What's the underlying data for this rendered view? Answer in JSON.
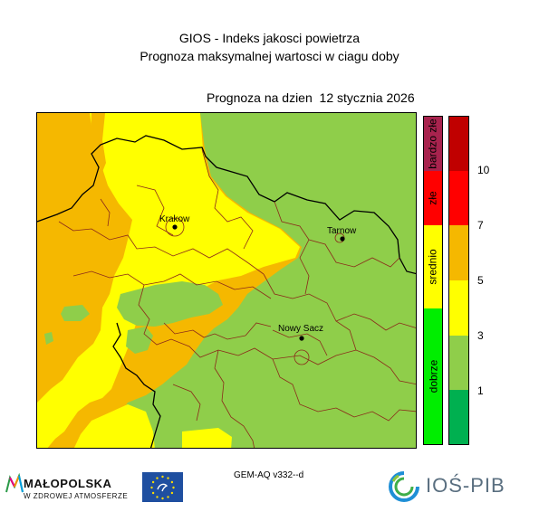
{
  "header": {
    "title_line1": "GIOS - Indeks jakosci powietrza",
    "title_line2": "Prognoza maksymalnej wartosci w ciagu doby",
    "date_line": "Prognoza na dzien  12 stycznia 2026"
  },
  "map": {
    "cities": [
      {
        "name": "Krakow"
      },
      {
        "name": "Tarnow"
      },
      {
        "name": "Nowy Sacz"
      }
    ],
    "fill_colors": {
      "orange": "#f5b800",
      "yellow": "#ffff00",
      "green": "#8fce4a"
    }
  },
  "legend": {
    "categories": [
      {
        "label": "bardzo złe",
        "color": "#a8234e"
      },
      {
        "label": "złe",
        "color": "#ff0000"
      },
      {
        "label": "srednio",
        "color": "#ffff00"
      },
      {
        "label": "dobrze",
        "color": "#00ee00"
      }
    ],
    "scale_colors": [
      "#c00000",
      "#ff0000",
      "#f5b800",
      "#ffff00",
      "#8fce4a",
      "#00b050"
    ],
    "scale_numbers": [
      "10",
      "7",
      "5",
      "3",
      "1"
    ]
  },
  "footer": {
    "model": "GEM-AQ v332--d",
    "malopolska_name": "MAŁOPOLSKA",
    "malopolska_sub": "W ZDROWEJ ATMOSFERZE",
    "ios_name": "IOŚ-PIB",
    "logo_icons": [
      "malopolska-logo-icon",
      "eu-life-flag-icon",
      "ios-pib-logo-icon"
    ]
  }
}
